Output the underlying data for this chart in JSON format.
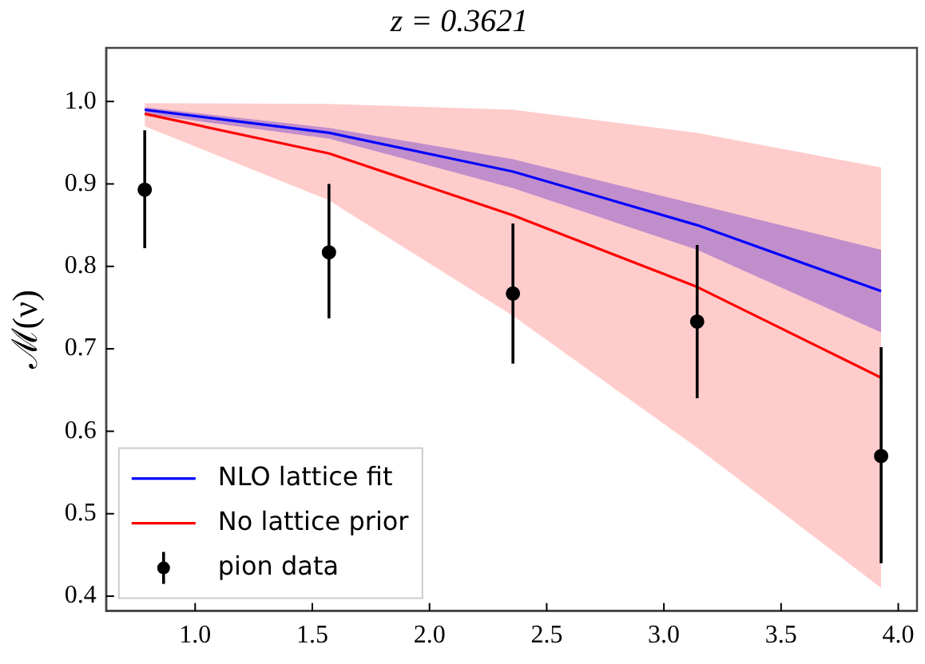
{
  "chart_data": {
    "type": "line",
    "title": "z = 0.3621",
    "ylabel": "ℳ(ν)",
    "x": [
      0.785,
      1.571,
      2.356,
      3.142,
      3.927
    ],
    "xlim": [
      0.62,
      4.08
    ],
    "xticks": [
      {
        "value": 1.0,
        "label": "1.0"
      },
      {
        "value": 1.5,
        "label": "1.5"
      },
      {
        "value": 2.0,
        "label": "2.0"
      },
      {
        "value": 2.5,
        "label": "2.5"
      },
      {
        "value": 3.0,
        "label": "3.0"
      },
      {
        "value": 3.5,
        "label": "3.5"
      },
      {
        "value": 4.0,
        "label": "4.0"
      }
    ],
    "ylim": [
      0.382,
      1.065
    ],
    "yticks": [
      {
        "value": 0.4,
        "label": "0.4"
      },
      {
        "value": 0.5,
        "label": "0.5"
      },
      {
        "value": 0.6,
        "label": "0.6"
      },
      {
        "value": 0.7,
        "label": "0.7"
      },
      {
        "value": 0.8,
        "label": "0.8"
      },
      {
        "value": 0.9,
        "label": "0.9"
      },
      {
        "value": 1.0,
        "label": "1.0"
      }
    ],
    "series": [
      {
        "name": "NLO lattice fit",
        "color": "#0000ff",
        "values": [
          0.99,
          0.962,
          0.915,
          0.85,
          0.77
        ],
        "lower": [
          0.985,
          0.955,
          0.895,
          0.82,
          0.72
        ],
        "upper": [
          0.993,
          0.968,
          0.93,
          0.875,
          0.82
        ]
      },
      {
        "name": "No lattice prior",
        "color": "#ff0000",
        "values": [
          0.985,
          0.937,
          0.862,
          0.775,
          0.665
        ],
        "lower": [
          0.97,
          0.88,
          0.74,
          0.58,
          0.41
        ],
        "upper": [
          0.998,
          0.997,
          0.99,
          0.962,
          0.92
        ]
      },
      {
        "name": "pion data",
        "type": "scatter",
        "color": "#000000",
        "marker": "circle",
        "values": [
          0.893,
          0.817,
          0.767,
          0.733,
          0.57
        ],
        "errors": [
          [
            0.822,
            0.965
          ],
          [
            0.737,
            0.9
          ],
          [
            0.682,
            0.852
          ],
          [
            0.64,
            0.826
          ],
          [
            0.44,
            0.702
          ]
        ]
      }
    ],
    "legend": "bottom left",
    "grid": false
  }
}
